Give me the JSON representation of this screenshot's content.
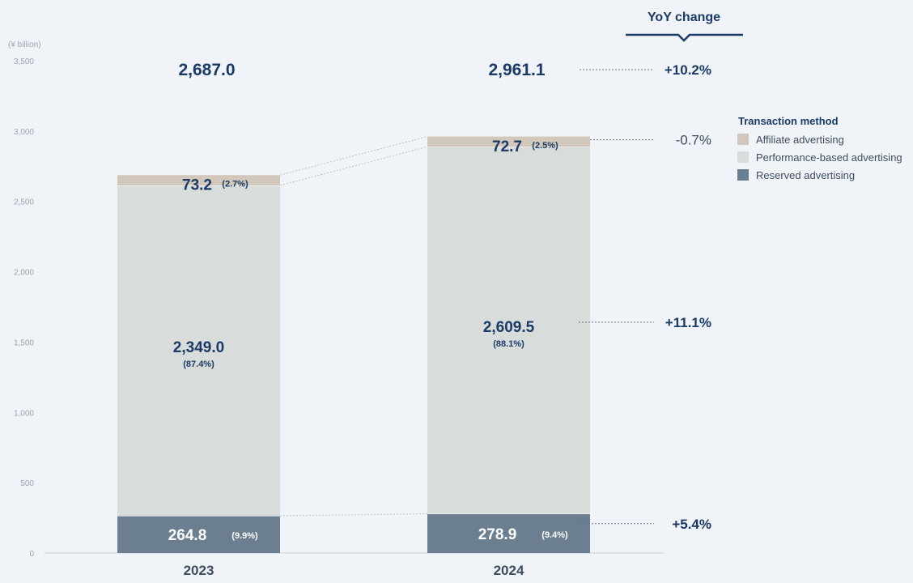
{
  "chart_data": {
    "type": "bar",
    "stacked": true,
    "unit_label": "(¥ billion)",
    "categories": [
      "2023",
      "2024"
    ],
    "ylim": [
      0,
      3500
    ],
    "yticks": [
      0,
      500,
      1000,
      1500,
      2000,
      2500,
      3000,
      3500
    ],
    "ytick_labels": [
      "0",
      "500",
      "1,000",
      "1,500",
      "2,000",
      "2,500",
      "3,000",
      "3,500"
    ],
    "totals": [
      2687.0,
      2961.1
    ],
    "total_labels": [
      "2,687.0",
      "2,961.1"
    ],
    "series": [
      {
        "name": "Reserved advertising",
        "color": "#6b7f90",
        "values": [
          264.8,
          278.9
        ],
        "value_labels": [
          "264.8",
          "278.9"
        ],
        "pct_labels": [
          "(9.9%)",
          "(9.4%)"
        ],
        "yoy": "+5.4%"
      },
      {
        "name": "Performance-based advertising",
        "color": "#d8dcda",
        "values": [
          2349.0,
          2609.5
        ],
        "value_labels": [
          "2,349.0",
          "2,609.5"
        ],
        "pct_labels": [
          "(87.4%)",
          "(88.1%)"
        ],
        "yoy": "+11.1%"
      },
      {
        "name": "Affiliate advertising",
        "color": "#d1c8bb",
        "values": [
          73.2,
          72.7
        ],
        "value_labels": [
          "73.2",
          "72.7"
        ],
        "pct_labels": [
          "(2.7%)",
          "(2.5%)"
        ],
        "yoy": "-0.7%"
      }
    ],
    "total_yoy": "+10.2%",
    "yoy_title": "YoY change",
    "legend_title": "Transaction method",
    "legend_order": [
      "Affiliate advertising",
      "Performance-based advertising",
      "Reserved advertising"
    ],
    "colors": {
      "accent": "#1b3a66",
      "axis": "#c9d0d8"
    }
  }
}
